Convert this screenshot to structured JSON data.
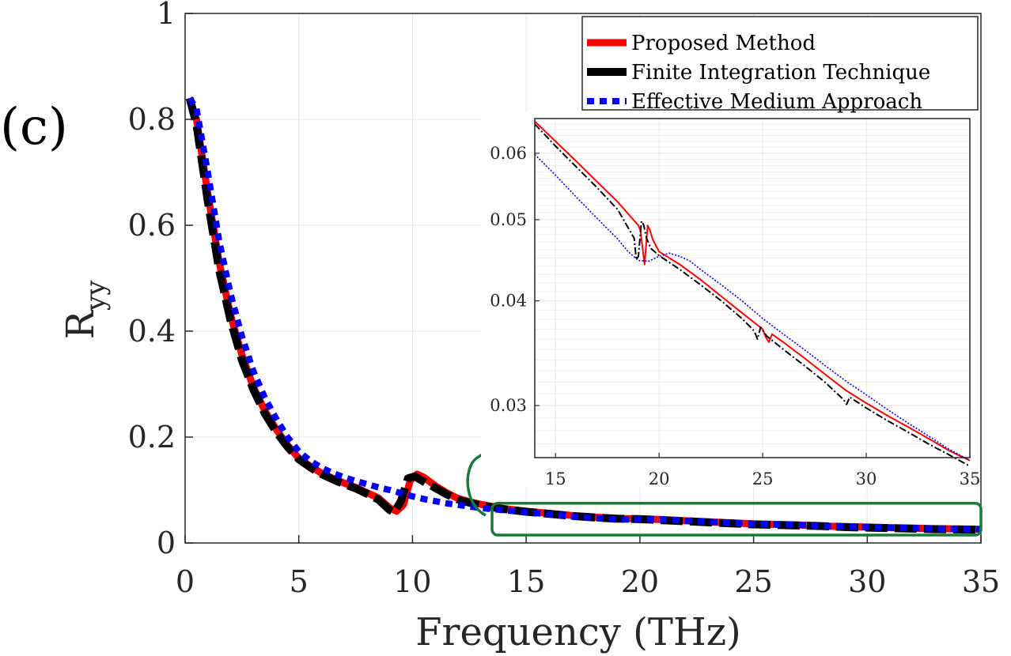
{
  "panel_label": "(c)",
  "colors": {
    "proposed": "#ff0000",
    "fit": "#000000",
    "ema": "#0000ff",
    "zoom_box": "#1a7a3a",
    "grid": "#e6e6e6",
    "axis": "#262626"
  },
  "chart_data": [
    {
      "id": "main",
      "type": "line",
      "title": "",
      "xlabel": "Frequency (THz)",
      "ylabel": "R",
      "ylabel_sub": "yy",
      "xlim": [
        0,
        35
      ],
      "ylim": [
        0,
        1
      ],
      "xticks": [
        0,
        5,
        10,
        15,
        20,
        25,
        30,
        35
      ],
      "yticks": [
        0,
        0.2,
        0.4,
        0.6,
        0.8,
        1
      ],
      "xtick_labels": [
        "0",
        "5",
        "10",
        "15",
        "20",
        "25",
        "30",
        "35"
      ],
      "ytick_labels": [
        "0",
        "0.2",
        "0.4",
        "0.6",
        "0.8",
        "1"
      ],
      "grid": true,
      "legend_position": "top-right",
      "series": [
        {
          "name": "Proposed Method",
          "key": "proposed",
          "x": [
            0.2,
            0.5,
            1,
            1.5,
            2,
            2.5,
            3,
            3.5,
            4,
            4.5,
            5,
            5.5,
            6,
            6.5,
            7,
            7.5,
            8,
            8.5,
            9,
            9.3,
            9.6,
            9.9,
            10.2,
            10.5,
            11,
            11.5,
            12,
            12.5,
            13,
            14,
            15,
            16,
            17,
            18,
            19,
            20,
            21,
            22,
            23,
            24,
            25,
            26,
            27,
            28,
            29,
            30,
            31,
            32,
            33,
            34,
            35
          ],
          "y": [
            0.84,
            0.8,
            0.66,
            0.53,
            0.43,
            0.355,
            0.295,
            0.25,
            0.215,
            0.185,
            0.16,
            0.145,
            0.132,
            0.122,
            0.113,
            0.105,
            0.095,
            0.085,
            0.066,
            0.06,
            0.072,
            0.118,
            0.13,
            0.124,
            0.108,
            0.095,
            0.084,
            0.078,
            0.073,
            0.065,
            0.06,
            0.056,
            0.052,
            0.049,
            0.046,
            0.046,
            0.044,
            0.042,
            0.04,
            0.038,
            0.036,
            0.035,
            0.034,
            0.032,
            0.031,
            0.03,
            0.029,
            0.028,
            0.027,
            0.0265,
            0.026
          ]
        },
        {
          "name": "Finite Integration Technique",
          "key": "fit",
          "x": [
            0.2,
            0.5,
            1,
            1.5,
            2,
            2.5,
            3,
            3.5,
            4,
            4.5,
            5,
            5.5,
            6,
            6.5,
            7,
            7.5,
            8,
            8.5,
            9,
            9.2,
            9.5,
            9.8,
            10.1,
            10.4,
            11,
            11.5,
            12,
            12.5,
            13,
            14,
            15,
            16,
            17,
            18,
            19,
            20,
            21,
            22,
            23,
            24,
            25,
            26,
            27,
            28,
            29,
            30,
            31,
            32,
            33,
            34,
            35
          ],
          "y": [
            0.84,
            0.79,
            0.645,
            0.515,
            0.42,
            0.345,
            0.29,
            0.245,
            0.21,
            0.182,
            0.158,
            0.143,
            0.13,
            0.12,
            0.111,
            0.103,
            0.093,
            0.082,
            0.062,
            0.058,
            0.08,
            0.122,
            0.126,
            0.118,
            0.104,
            0.092,
            0.082,
            0.076,
            0.071,
            0.064,
            0.059,
            0.055,
            0.051,
            0.048,
            0.046,
            0.045,
            0.043,
            0.041,
            0.039,
            0.037,
            0.035,
            0.034,
            0.033,
            0.032,
            0.03,
            0.029,
            0.028,
            0.027,
            0.026,
            0.0255,
            0.025
          ]
        },
        {
          "name": "Effective Medium Approach",
          "key": "ema",
          "x": [
            0.2,
            0.5,
            1,
            1.5,
            2,
            2.5,
            3,
            3.5,
            4,
            4.5,
            5,
            5.5,
            6,
            6.5,
            7,
            7.5,
            8,
            8.5,
            9,
            9.5,
            10,
            10.5,
            11,
            11.5,
            12,
            12.5,
            13,
            14,
            15,
            16,
            17,
            18,
            19,
            20,
            21,
            22,
            23,
            24,
            25,
            26,
            27,
            28,
            29,
            30,
            31,
            32,
            33,
            34,
            35
          ],
          "y": [
            0.84,
            0.82,
            0.7,
            0.57,
            0.47,
            0.39,
            0.325,
            0.275,
            0.235,
            0.2,
            0.173,
            0.155,
            0.142,
            0.132,
            0.124,
            0.117,
            0.111,
            0.105,
            0.1,
            0.094,
            0.088,
            0.083,
            0.079,
            0.075,
            0.072,
            0.069,
            0.066,
            0.062,
            0.058,
            0.054,
            0.05,
            0.047,
            0.044,
            0.045,
            0.045,
            0.042,
            0.04,
            0.038,
            0.036,
            0.035,
            0.034,
            0.032,
            0.031,
            0.03,
            0.029,
            0.028,
            0.027,
            0.0265,
            0.026
          ]
        }
      ],
      "zoom_region": {
        "x": [
          13.5,
          35
        ],
        "y": [
          0.015,
          0.075
        ]
      }
    },
    {
      "id": "inset",
      "type": "line",
      "title": "",
      "xlabel": "",
      "ylabel": "",
      "xlim": [
        14,
        35
      ],
      "ylim": [
        0.026,
        0.066
      ],
      "yscale": "log",
      "xticks": [
        15,
        20,
        25,
        30,
        35
      ],
      "yticks": [
        0.03,
        0.04,
        0.05,
        0.06
      ],
      "xtick_labels": [
        "15",
        "20",
        "25",
        "30",
        "35"
      ],
      "ytick_labels": [
        "0.03",
        "0.04",
        "0.05",
        "0.06"
      ],
      "grid": true,
      "series": [
        {
          "name": "Proposed Method",
          "key": "proposed",
          "x": [
            14,
            15,
            16,
            17,
            18,
            19,
            19.1,
            19.2,
            19.3,
            19.45,
            19.55,
            19.7,
            20,
            21,
            22,
            23,
            24,
            25,
            25.15,
            25.3,
            25.45,
            26,
            27,
            28,
            29,
            30,
            31,
            32,
            33,
            34,
            35
          ],
          "y": [
            0.0655,
            0.062,
            0.0587,
            0.0555,
            0.0525,
            0.0492,
            0.0485,
            0.0463,
            0.0442,
            0.0492,
            0.0486,
            0.0473,
            0.0458,
            0.0442,
            0.0424,
            0.0405,
            0.0387,
            0.037,
            0.0362,
            0.0357,
            0.0365,
            0.0357,
            0.0342,
            0.0327,
            0.0313,
            0.0302,
            0.0292,
            0.0283,
            0.0274,
            0.0265,
            0.0258
          ]
        },
        {
          "name": "Finite Integration Technique",
          "key": "fit",
          "x": [
            14,
            15,
            16,
            17,
            18,
            18.8,
            18.9,
            19.0,
            19.15,
            19.25,
            19.4,
            19.6,
            20,
            21,
            22,
            23,
            24,
            24.6,
            24.75,
            24.9,
            25.2,
            26,
            27,
            28,
            28.9,
            29.05,
            29.2,
            30,
            31,
            32,
            33,
            34,
            35
          ],
          "y": [
            0.065,
            0.0612,
            0.0578,
            0.0546,
            0.0514,
            0.0475,
            0.0448,
            0.0452,
            0.0498,
            0.0493,
            0.0475,
            0.0462,
            0.0453,
            0.0436,
            0.0418,
            0.04,
            0.0381,
            0.0368,
            0.036,
            0.0372,
            0.0363,
            0.035,
            0.0335,
            0.032,
            0.0305,
            0.0301,
            0.0307,
            0.0298,
            0.0288,
            0.0279,
            0.027,
            0.0262,
            0.0254
          ]
        },
        {
          "name": "Effective Medium Approach",
          "key": "ema",
          "x": [
            14,
            15,
            16,
            17,
            18,
            18.5,
            19,
            19.5,
            20,
            20.5,
            21,
            21.5,
            22,
            23,
            24,
            25,
            26,
            27,
            28,
            29,
            30,
            31,
            32,
            33,
            34,
            35
          ],
          "y": [
            0.0598,
            0.0565,
            0.0532,
            0.0502,
            0.0474,
            0.0458,
            0.0447,
            0.0446,
            0.0452,
            0.0456,
            0.0452,
            0.0446,
            0.0436,
            0.0418,
            0.04,
            0.0381,
            0.0365,
            0.035,
            0.0335,
            0.0321,
            0.0309,
            0.0297,
            0.0286,
            0.0276,
            0.0266,
            0.0258
          ]
        }
      ]
    }
  ]
}
